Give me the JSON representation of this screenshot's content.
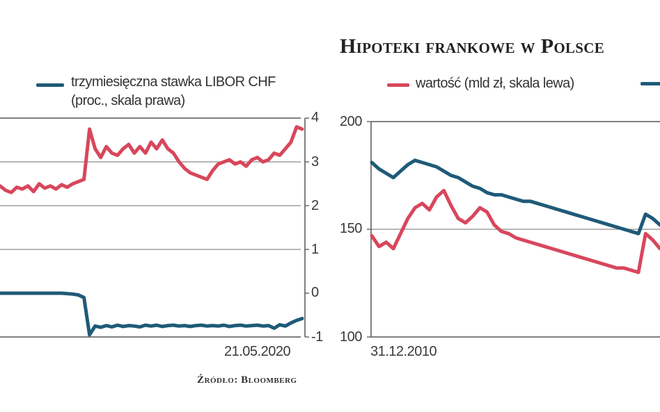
{
  "colors": {
    "red": "#d8475c",
    "blue": "#1f5a78",
    "grid": "#8a8a8a",
    "axis": "#555555"
  },
  "source": "Źródło: Bloomberg",
  "chart_data": [
    {
      "type": "line",
      "title": "",
      "legend": {
        "line1": "trzymiesięczna stawka LIBOR CHF",
        "line2": "(proc., skala prawa)"
      },
      "right_ticks": [
        "4",
        "3",
        "2",
        "1",
        "0",
        "-1"
      ],
      "ylim_right": [
        -1,
        4
      ],
      "x_label_end": "21.05.2020",
      "series": [
        {
          "name": "trzymiesięczna stawka LIBOR CHF (proc., skala prawa)",
          "color": "#1f5a78",
          "values": [
            0.0,
            0.0,
            0.0,
            0.0,
            0.0,
            0.0,
            0.0,
            0.0,
            0.0,
            0.0,
            0.0,
            -0.0,
            -0.01,
            -0.02,
            -0.04,
            -0.1,
            -0.95,
            -0.75,
            -0.78,
            -0.74,
            -0.77,
            -0.73,
            -0.76,
            -0.74,
            -0.75,
            -0.77,
            -0.73,
            -0.75,
            -0.73,
            -0.76,
            -0.74,
            -0.73,
            -0.75,
            -0.74,
            -0.76,
            -0.74,
            -0.73,
            -0.75,
            -0.74,
            -0.75,
            -0.73,
            -0.76,
            -0.74,
            -0.73,
            -0.75,
            -0.74,
            -0.73,
            -0.75,
            -0.74,
            -0.8,
            -0.72,
            -0.75,
            -0.68,
            -0.62,
            -0.58
          ]
        },
        {
          "name": "",
          "color": "#d8475c",
          "values": [
            2.45,
            2.35,
            2.3,
            2.42,
            2.38,
            2.45,
            2.32,
            2.5,
            2.4,
            2.45,
            2.38,
            2.48,
            2.42,
            2.5,
            2.55,
            2.6,
            3.75,
            3.3,
            3.1,
            3.35,
            3.2,
            3.15,
            3.3,
            3.4,
            3.2,
            3.35,
            3.2,
            3.45,
            3.3,
            3.5,
            3.3,
            3.2,
            3.0,
            2.85,
            2.75,
            2.7,
            2.65,
            2.6,
            2.8,
            2.95,
            3.0,
            3.05,
            2.95,
            3.0,
            2.9,
            3.05,
            3.1,
            3.0,
            3.05,
            3.2,
            3.15,
            3.3,
            3.45,
            3.8,
            3.75
          ]
        }
      ]
    },
    {
      "type": "line",
      "title": "Hipoteki frankowe w Polsce",
      "legend": {
        "red_label": "wartość (mld zł, skala lewa)"
      },
      "left_ticks": [
        "200",
        "150",
        "100"
      ],
      "ylim_left": [
        100,
        200
      ],
      "x_label_start": "31.12.2010",
      "series": [
        {
          "name": "wartość (mld zł, skala lewa)",
          "color": "#d8475c",
          "values": [
            147,
            142,
            144,
            141,
            148,
            155,
            160,
            162,
            159,
            165,
            168,
            161,
            155,
            153,
            156,
            160,
            158,
            152,
            149,
            148,
            146,
            145,
            144,
            143,
            142,
            141,
            140,
            139,
            138,
            137,
            136,
            135,
            134,
            133,
            132,
            132,
            131,
            130,
            148,
            145,
            141
          ]
        },
        {
          "name": "",
          "color": "#1f5a78",
          "values": [
            181,
            178,
            176,
            174,
            177,
            180,
            182,
            181,
            180,
            179,
            177,
            175,
            174,
            172,
            170,
            169,
            167,
            166,
            166,
            165,
            164,
            163,
            163,
            162,
            161,
            160,
            159,
            158,
            157,
            156,
            155,
            154,
            153,
            152,
            151,
            150,
            149,
            148,
            157,
            155,
            152
          ]
        }
      ]
    }
  ]
}
